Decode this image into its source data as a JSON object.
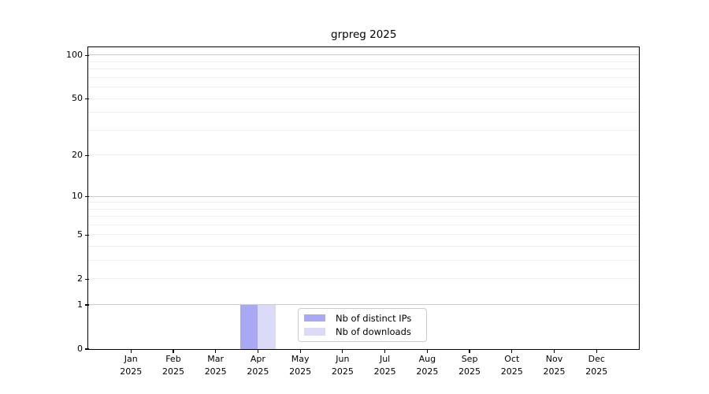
{
  "title": "grpreg 2025",
  "chart_data": {
    "type": "bar",
    "title": "grpreg 2025",
    "categories": [
      "Jan",
      "Feb",
      "Mar",
      "Apr",
      "May",
      "Jun",
      "Jul",
      "Aug",
      "Sep",
      "Oct",
      "Nov",
      "Dec"
    ],
    "year": "2025",
    "series": [
      {
        "name": "Nb of distinct IPs",
        "color": "#a8a8f4",
        "values": [
          0,
          0,
          0,
          1,
          0,
          0,
          0,
          0,
          0,
          0,
          0,
          0
        ]
      },
      {
        "name": "Nb of downloads",
        "color": "#dbdbf7",
        "values": [
          0,
          0,
          0,
          1,
          0,
          0,
          0,
          0,
          0,
          0,
          0,
          0
        ]
      }
    ],
    "y_scale": "log1p",
    "y_axis_ticks": [
      0,
      1,
      2,
      5,
      10,
      20,
      50,
      100
    ],
    "y_max": 113,
    "gridlines_major": [
      1,
      10,
      100
    ],
    "gridlines_minor": [
      2,
      3,
      4,
      5,
      6,
      7,
      8,
      9,
      20,
      30,
      40,
      50,
      60,
      70,
      80,
      90
    ],
    "grid": "horizontal",
    "legend_position": "inside-bottom-center",
    "colors": {
      "grid_major": "#cbcbcb",
      "grid_minor": "#efefef",
      "axis": "#000000",
      "legend_border": "#cccccc"
    }
  }
}
